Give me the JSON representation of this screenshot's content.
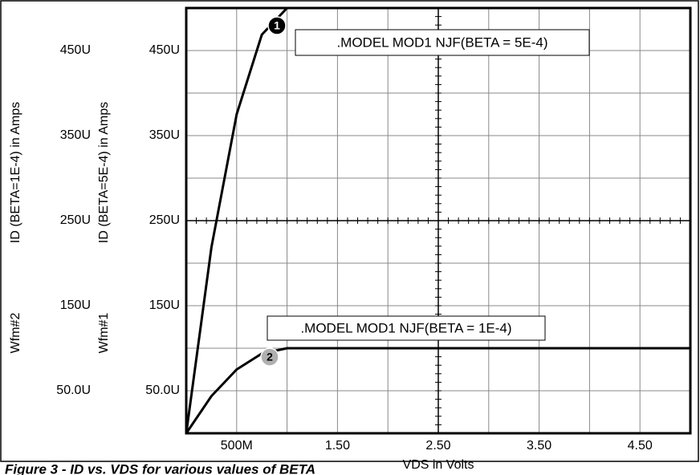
{
  "chart_data": {
    "type": "line",
    "caption": "Figure 3 - ID vs. VDS for various values of BETA",
    "xlabel": "VDS in Volts",
    "ylabel_tag": "Wfm#2",
    "ylabel": "ID (BETA=1E-4) in Amps",
    "y2label_tag": "Wfm#1",
    "y2label": "ID (BETA=5E-4) in Amps",
    "x": [
      0,
      0.25,
      0.5,
      0.75,
      1,
      5
    ],
    "xlim": [
      0,
      5
    ],
    "xticks": [
      {
        "value": 0.5,
        "label": "500M"
      },
      {
        "value": 1.5,
        "label": "1.50"
      },
      {
        "value": 2.5,
        "label": "2.50"
      },
      {
        "value": 3.5,
        "label": "3.50"
      },
      {
        "value": 4.5,
        "label": "4.50"
      }
    ],
    "xgrid": [
      0.5,
      1,
      1.5,
      2,
      2.5,
      3,
      3.5,
      4,
      4.5
    ],
    "ylim": [
      0,
      0.0005
    ],
    "yticks": [
      {
        "value": 5e-05,
        "label": "50.0U"
      },
      {
        "value": 0.00015,
        "label": "150U"
      },
      {
        "value": 0.00025,
        "label": "250U"
      },
      {
        "value": 0.00035,
        "label": "350U"
      },
      {
        "value": 0.00045,
        "label": "450U"
      }
    ],
    "y2lim": [
      0,
      0.0005
    ],
    "y2ticks": [
      {
        "value": 5e-05,
        "label": "50.0U"
      },
      {
        "value": 0.00015,
        "label": "150U"
      },
      {
        "value": 0.00025,
        "label": "250U"
      },
      {
        "value": 0.00035,
        "label": "350U"
      },
      {
        "value": 0.00045,
        "label": "450U"
      }
    ],
    "ygrid": [
      5e-05,
      0.0001,
      0.00015,
      0.0002,
      0.00025,
      0.0003,
      0.00035,
      0.0004,
      0.00045
    ],
    "grid": true,
    "series": [
      {
        "marker_label": "1",
        "color": "#000000",
        "marker_color": "#000000",
        "axis": "y2",
        "values": [
          0,
          0.00021875,
          0.000375,
          0.00046875,
          0.0005,
          0.0005
        ],
        "annotation": ".MODEL MOD1 NJF(BETA = 5E-4)"
      },
      {
        "marker_label": "2",
        "color": "#000000",
        "marker_color": "#b0b0b0",
        "axis": "y",
        "values": [
          0,
          4.375e-05,
          7.5e-05,
          9.375e-05,
          0.0001,
          0.0001
        ],
        "annotation": ".MODEL MOD1 NJF(BETA = 1E-4)"
      }
    ]
  }
}
